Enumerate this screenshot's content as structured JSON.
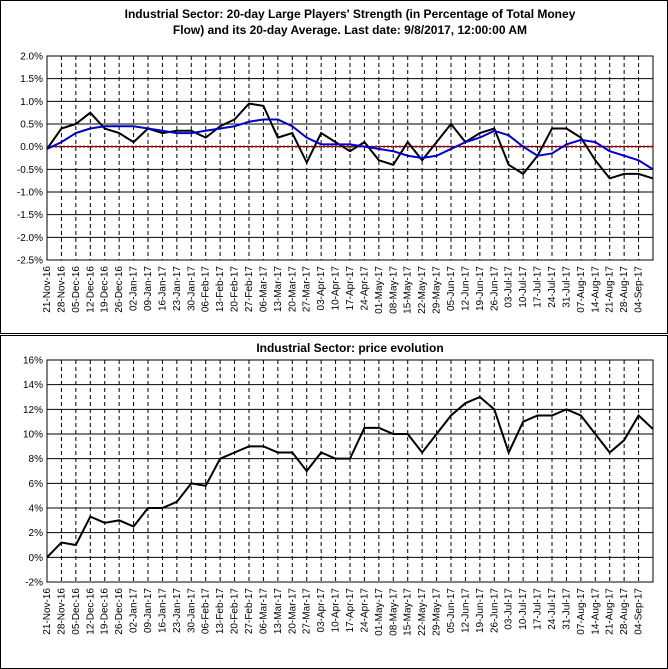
{
  "chart_data": [
    {
      "type": "line",
      "title": [
        "Industrial Sector: 20-day Large Players' Strength (in Percentage of Total Money",
        "Flow) and its 20-day Average. Last date: 9/8/2017, 12:00:00 AM"
      ],
      "categories": [
        "21-Nov-16",
        "28-Nov-16",
        "05-Dec-16",
        "12-Dec-16",
        "19-Dec-16",
        "26-Dec-16",
        "02-Jan-17",
        "09-Jan-17",
        "16-Jan-17",
        "23-Jan-17",
        "30-Jan-17",
        "06-Feb-17",
        "13-Feb-17",
        "20-Feb-17",
        "27-Feb-17",
        "06-Mar-17",
        "13-Mar-17",
        "20-Mar-17",
        "27-Mar-17",
        "03-Apr-17",
        "10-Apr-17",
        "17-Apr-17",
        "24-Apr-17",
        "01-May-17",
        "08-May-17",
        "15-May-17",
        "22-May-17",
        "29-May-17",
        "05-Jun-17",
        "12-Jun-17",
        "19-Jun-17",
        "26-Jun-17",
        "03-Jul-17",
        "10-Jul-17",
        "17-Jul-17",
        "24-Jul-17",
        "31-Jul-17",
        "07-Aug-17",
        "14-Aug-17",
        "21-Aug-17",
        "28-Aug-17",
        "04-Sep-17",
        null
      ],
      "series": [
        {
          "color": "#000000",
          "values": [
            -0.05,
            0.4,
            0.5,
            0.75,
            0.4,
            0.3,
            0.1,
            0.4,
            0.3,
            0.35,
            0.35,
            0.2,
            0.45,
            0.6,
            0.95,
            0.9,
            0.2,
            0.3,
            -0.35,
            0.3,
            0.1,
            -0.1,
            0.1,
            -0.3,
            -0.4,
            0.1,
            -0.3,
            0.1,
            0.5,
            0.1,
            0.3,
            0.4,
            -0.4,
            -0.6,
            -0.2,
            0.4,
            0.4,
            0.2,
            -0.3,
            -0.7,
            -0.6,
            -0.6,
            -0.7
          ]
        },
        {
          "color": "#0000cc",
          "values": [
            -0.05,
            0.1,
            0.3,
            0.4,
            0.45,
            0.45,
            0.45,
            0.4,
            0.35,
            0.3,
            0.3,
            0.35,
            0.4,
            0.45,
            0.55,
            0.6,
            0.6,
            0.45,
            0.2,
            0.05,
            0.05,
            0.05,
            0,
            -0.05,
            -0.1,
            -0.2,
            -0.25,
            -0.2,
            -0.05,
            0.1,
            0.2,
            0.35,
            0.25,
            0,
            -0.2,
            -0.15,
            0.05,
            0.15,
            0.1,
            -0.1,
            -0.2,
            -0.3,
            -0.5
          ]
        }
      ],
      "reference_line": {
        "value": 0,
        "color": "#cc0000"
      },
      "ylim": [
        -2.5,
        2.0
      ],
      "yticks": [
        {
          "value": -2.5,
          "label": "-2.5%"
        },
        {
          "value": -2.0,
          "label": "-2.0%"
        },
        {
          "value": -1.5,
          "label": "-1.5%"
        },
        {
          "value": -1.0,
          "label": "-1.0%"
        },
        {
          "value": -0.5,
          "label": "-0.5%"
        },
        {
          "value": 0,
          "label": "0.0%"
        },
        {
          "value": 0.5,
          "label": "0.5%"
        },
        {
          "value": 1.0,
          "label": "1.0%"
        },
        {
          "value": 1.5,
          "label": "1.5%"
        },
        {
          "value": 2.0,
          "label": "2.0%"
        }
      ],
      "grid": true
    },
    {
      "type": "line",
      "title": [
        "Industrial Sector: price evolution"
      ],
      "categories": [
        "21-Nov-16",
        "28-Nov-16",
        "05-Dec-16",
        "12-Dec-16",
        "19-Dec-16",
        "26-Dec-16",
        "02-Jan-17",
        "09-Jan-17",
        "16-Jan-17",
        "23-Jan-17",
        "30-Jan-17",
        "06-Feb-17",
        "13-Feb-17",
        "20-Feb-17",
        "27-Feb-17",
        "06-Mar-17",
        "13-Mar-17",
        "20-Mar-17",
        "27-Mar-17",
        "03-Apr-17",
        "10-Apr-17",
        "17-Apr-17",
        "24-Apr-17",
        "01-May-17",
        "08-May-17",
        "15-May-17",
        "22-May-17",
        "29-May-17",
        "05-Jun-17",
        "12-Jun-17",
        "19-Jun-17",
        "26-Jun-17",
        "03-Jul-17",
        "10-Jul-17",
        "17-Jul-17",
        "24-Jul-17",
        "31-Jul-17",
        "07-Aug-17",
        "14-Aug-17",
        "21-Aug-17",
        "28-Aug-17",
        "04-Sep-17",
        null
      ],
      "series": [
        {
          "color": "#000000",
          "values": [
            0,
            1.2,
            1,
            3.3,
            2.8,
            3,
            2.5,
            4,
            4,
            4.5,
            6,
            5.8,
            8,
            8.5,
            9,
            9,
            8.5,
            8.5,
            7,
            8.5,
            8,
            8,
            10.5,
            10.5,
            10,
            10,
            8.5,
            10,
            11.5,
            12.5,
            13,
            12,
            8.5,
            11,
            11.5,
            11.5,
            12,
            11.5,
            10,
            8.5,
            9.5,
            11.5,
            10.4
          ]
        }
      ],
      "ylim": [
        -2,
        16
      ],
      "yticks": [
        {
          "value": -2,
          "label": "-2%"
        },
        {
          "value": 0,
          "label": "0%"
        },
        {
          "value": 2,
          "label": "2%"
        },
        {
          "value": 4,
          "label": "4%"
        },
        {
          "value": 6,
          "label": "6%"
        },
        {
          "value": 8,
          "label": "8%"
        },
        {
          "value": 10,
          "label": "10%"
        },
        {
          "value": 12,
          "label": "12%"
        },
        {
          "value": 14,
          "label": "14%"
        },
        {
          "value": 16,
          "label": "16%"
        }
      ],
      "grid": true
    }
  ]
}
